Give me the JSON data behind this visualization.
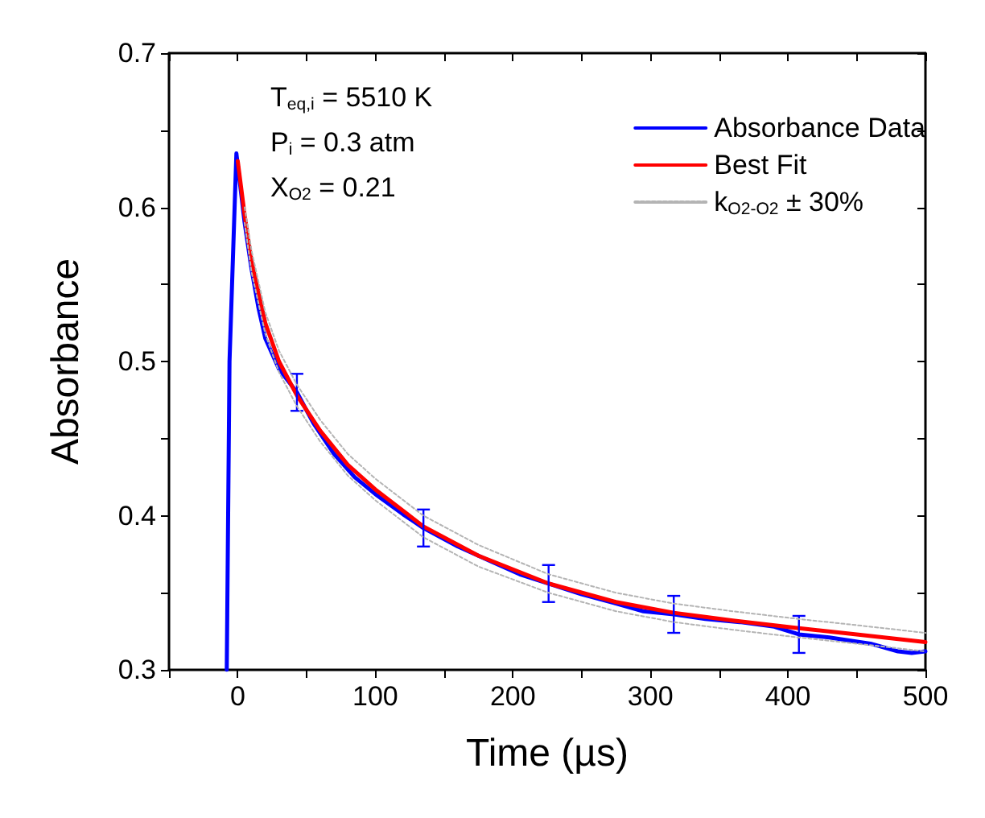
{
  "chart_data": {
    "type": "line",
    "xlabel": "Time (µs)",
    "ylabel": "Absorbance",
    "legend": "top right",
    "grid": false,
    "marker": "none",
    "annotations": [
      "T$_{eq,i}$ = 5510 K",
      "P$_{i}$ = 0.3 atm",
      "X$_{O2}$ = 0.21"
    ],
    "xlim": [
      -50,
      500
    ],
    "xticks": [
      {
        "value": -50,
        "label": null
      },
      0,
      {
        "value": 50,
        "label": null
      },
      100,
      {
        "value": 150,
        "label": null
      },
      200,
      {
        "value": 250,
        "label": null
      },
      300,
      {
        "value": 350,
        "label": null
      },
      400,
      {
        "value": 450,
        "label": null
      },
      500
    ],
    "ylim": [
      0.3,
      0.7
    ],
    "yticks": [
      0.3,
      {
        "value": 0.35,
        "label": null
      },
      0.4,
      {
        "value": 0.45,
        "label": null
      },
      0.5,
      {
        "value": 0.55,
        "label": null
      },
      0.6,
      {
        "value": 0.65,
        "label": null
      },
      0.7
    ],
    "series": [
      {
        "name": "Absorbance Data",
        "color": "#0000ff",
        "line_style": "solid",
        "x": [
          -8,
          -6,
          -1,
          1,
          5,
          10,
          15,
          20,
          30,
          43,
          55,
          70,
          85,
          100,
          120,
          135,
          160,
          185,
          205,
          226,
          250,
          275,
          295,
          317,
          340,
          365,
          390,
          408,
          430,
          460,
          480,
          490,
          500
        ],
        "values": [
          0.3,
          0.5,
          0.635,
          0.62,
          0.59,
          0.56,
          0.535,
          0.515,
          0.495,
          0.48,
          0.46,
          0.44,
          0.425,
          0.414,
          0.401,
          0.392,
          0.38,
          0.37,
          0.362,
          0.356,
          0.349,
          0.343,
          0.338,
          0.336,
          0.333,
          0.331,
          0.328,
          0.323,
          0.321,
          0.317,
          0.312,
          0.311,
          0.312
        ],
        "errors": [
          null,
          null,
          null,
          null,
          null,
          null,
          null,
          null,
          null,
          0.012,
          null,
          null,
          null,
          null,
          null,
          0.012,
          null,
          null,
          null,
          0.012,
          null,
          null,
          null,
          0.012,
          null,
          null,
          null,
          0.012,
          null,
          null,
          null,
          null,
          null
        ]
      },
      {
        "name": "Best Fit",
        "color": "#ff0000",
        "line_style": "solid",
        "x": [
          0,
          5,
          10,
          20,
          30,
          43,
          60,
          80,
          100,
          135,
          175,
          226,
          275,
          317,
          360,
          408,
          450,
          500
        ],
        "values": [
          0.63,
          0.595,
          0.565,
          0.525,
          0.5,
          0.478,
          0.455,
          0.433,
          0.417,
          0.393,
          0.374,
          0.356,
          0.344,
          0.337,
          0.332,
          0.327,
          0.323,
          0.318
        ]
      },
      {
        "name": "k$_{O2-O2}$ ± 30%",
        "color": "#b4b4b4",
        "line_style": "dashed",
        "x": [
          5,
          10,
          20,
          30,
          43,
          60,
          80,
          100,
          135,
          175,
          226,
          275,
          317,
          360,
          408,
          450,
          500
        ],
        "values": [
          0.6,
          0.572,
          0.532,
          0.507,
          0.485,
          0.462,
          0.44,
          0.424,
          0.4,
          0.381,
          0.362,
          0.35,
          0.343,
          0.338,
          0.333,
          0.329,
          0.324
        ]
      },
      {
        "color": "#b4b4b4",
        "line_style": "dashed",
        "x": [
          5,
          10,
          20,
          30,
          43,
          60,
          80,
          100,
          135,
          175,
          226,
          275,
          317,
          360,
          408,
          450,
          500
        ],
        "values": [
          0.59,
          0.558,
          0.518,
          0.493,
          0.471,
          0.448,
          0.426,
          0.41,
          0.386,
          0.367,
          0.35,
          0.338,
          0.331,
          0.326,
          0.321,
          0.317,
          0.312
        ]
      }
    ]
  }
}
